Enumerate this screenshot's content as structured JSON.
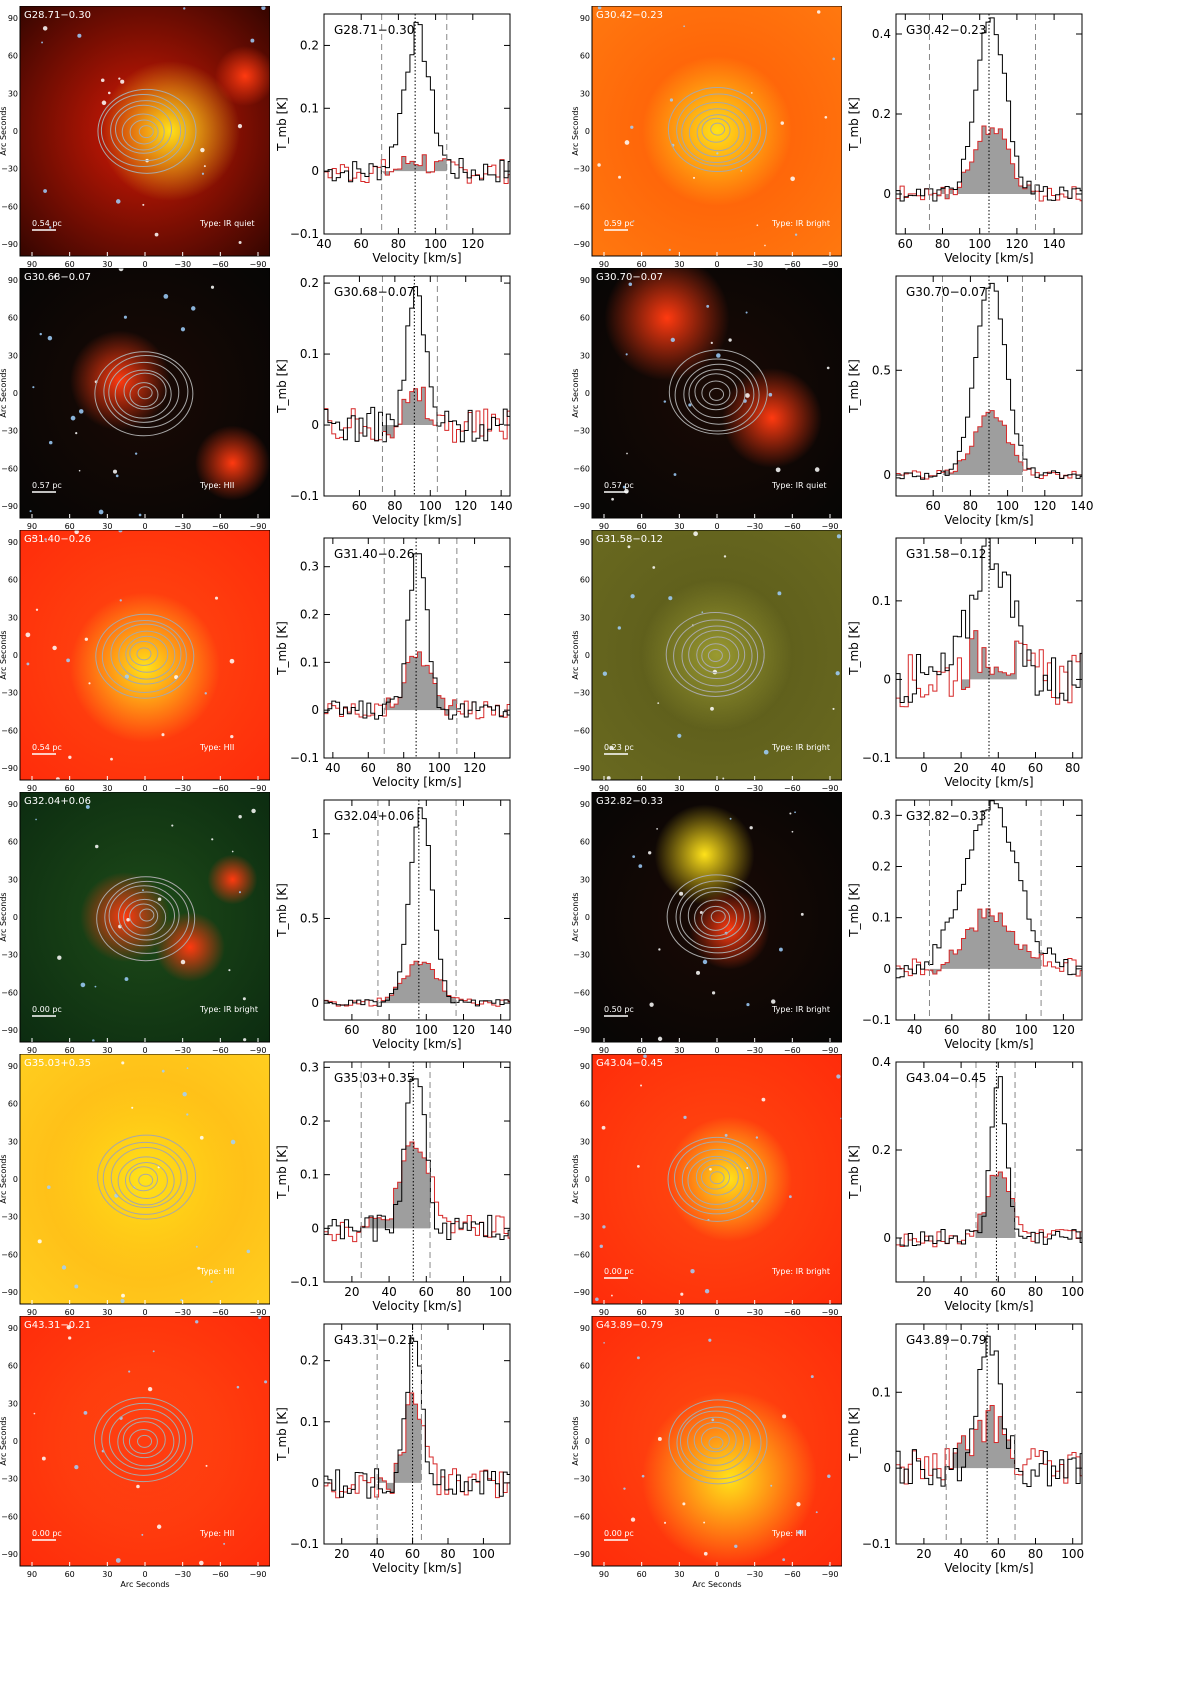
{
  "palette": {
    "spectrum_black": "#000000",
    "spectrum_red": "#d62828",
    "fill_gray": "#9e9e9e",
    "contour_gray": "#a8a8a8",
    "img_red": "#ff3a10",
    "img_yellow": "#ffe21a",
    "img_green": "#2f8a2a",
    "img_dark": "#0a0a0a"
  },
  "image_panel_labels": {
    "y_axis": "Arc Seconds",
    "x_axis": "Arc Seconds",
    "x_ticks": [
      "90",
      "60",
      "30",
      "0",
      "−30",
      "−60",
      "−90"
    ],
    "y_ticks": [
      "90",
      "60",
      "30",
      "0",
      "−30",
      "−60",
      "−90"
    ]
  },
  "chart_data": [
    {
      "source": "G28.71−0.30",
      "image": {
        "type_label": "Type:  IR quiet",
        "scale_label": "0.54  pc",
        "bg": "red-dark",
        "blobs": [
          [
            0.6,
            0.5,
            0.28,
            "yellow"
          ],
          [
            0.9,
            0.28,
            0.12,
            "red"
          ]
        ]
      },
      "spectrum": {
        "type": "line",
        "xlabel": "Velocity [km/s]",
        "ylabel": "T_mb [K]",
        "xlim": [
          40,
          140
        ],
        "ylim": [
          -0.1,
          0.25
        ],
        "xticks": [
          40,
          60,
          80,
          100,
          120
        ],
        "yticks": [
          -0.1,
          0,
          0.1,
          0.2
        ],
        "vsys": 89,
        "vlines": [
          71,
          106
        ],
        "black_peak": 0.22,
        "black_width": 7,
        "red_peak": 0.02,
        "red_width": 6,
        "noise": 0.02
      }
    },
    {
      "source": "G30.42−0.23",
      "image": {
        "type_label": "Type:  IR bright",
        "scale_label": "0.59  pc",
        "bg": "orange",
        "blobs": [
          [
            0.5,
            0.5,
            0.3,
            "yellow"
          ]
        ]
      },
      "spectrum": {
        "type": "line",
        "xlabel": "Velocity [km/s]",
        "ylabel": "T_mb [K]",
        "xlim": [
          55,
          155
        ],
        "ylim": [
          -0.1,
          0.45
        ],
        "xticks": [
          60,
          80,
          100,
          120,
          140
        ],
        "yticks": [
          0,
          0.2,
          0.4
        ],
        "vsys": 105,
        "vlines": [
          73,
          130
        ],
        "black_peak": 0.43,
        "black_width": 8,
        "red_peak": 0.17,
        "red_width": 9,
        "noise": 0.02
      }
    },
    {
      "source": "G30.68−0.07",
      "image": {
        "type_label": "Type:  HII",
        "scale_label": "0.57  pc",
        "bg": "dark",
        "blobs": [
          [
            0.4,
            0.45,
            0.2,
            "red"
          ],
          [
            0.85,
            0.78,
            0.15,
            "red"
          ]
        ]
      },
      "spectrum": {
        "type": "line",
        "xlabel": "Velocity [km/s]",
        "ylabel": "T_mb [K]",
        "xlim": [
          40,
          145
        ],
        "ylim": [
          -0.1,
          0.21
        ],
        "xticks": [
          60,
          80,
          100,
          120,
          140
        ],
        "yticks": [
          -0.1,
          0,
          0.1,
          0.2
        ],
        "vsys": 91,
        "vlines": [
          73,
          104
        ],
        "black_peak": 0.19,
        "black_width": 5,
        "red_peak": 0.04,
        "red_width": 6,
        "noise": 0.025
      }
    },
    {
      "source": "G30.70−0.07",
      "image": {
        "type_label": "Type:  IR quiet",
        "scale_label": "0.57  pc",
        "bg": "dark",
        "blobs": [
          [
            0.72,
            0.6,
            0.2,
            "red"
          ],
          [
            0.3,
            0.2,
            0.25,
            "red"
          ]
        ]
      },
      "spectrum": {
        "type": "line",
        "xlabel": "Velocity [km/s]",
        "ylabel": "T_mb [K]",
        "xlim": [
          40,
          140
        ],
        "ylim": [
          -0.1,
          0.95
        ],
        "xticks": [
          60,
          80,
          100,
          120,
          140
        ],
        "yticks": [
          0,
          0.5
        ],
        "vsys": 90,
        "vlines": [
          65,
          108
        ],
        "black_peak": 0.92,
        "black_width": 8,
        "red_peak": 0.3,
        "red_width": 9,
        "noise": 0.02
      }
    },
    {
      "source": "G31.40−0.26",
      "image": {
        "type_label": "Type:  HII",
        "scale_label": "0.54  pc",
        "bg": "red",
        "blobs": [
          [
            0.5,
            0.55,
            0.3,
            "yellow"
          ]
        ]
      },
      "spectrum": {
        "type": "line",
        "xlabel": "Velocity [km/s]",
        "ylabel": "T_mb [K]",
        "xlim": [
          35,
          140
        ],
        "ylim": [
          -0.1,
          0.36
        ],
        "xticks": [
          40,
          60,
          80,
          100,
          120
        ],
        "yticks": [
          -0.1,
          0,
          0.1,
          0.2,
          0.3
        ],
        "vsys": 87,
        "vlines": [
          69,
          110
        ],
        "black_peak": 0.35,
        "black_width": 5,
        "red_peak": 0.12,
        "red_width": 7,
        "noise": 0.02
      }
    },
    {
      "source": "G31.58−0.12",
      "image": {
        "type_label": "Type:  IR bright",
        "scale_label": "0.23  pc",
        "bg": "olive",
        "blobs": [
          [
            0.5,
            0.5,
            0.3,
            "olive"
          ]
        ]
      },
      "spectrum": {
        "type": "line",
        "xlabel": "Velocity [km/s]",
        "ylabel": "T_mb [K]",
        "xlim": [
          -15,
          85
        ],
        "ylim": [
          -0.1,
          0.18
        ],
        "xticks": [
          0,
          20,
          40,
          60,
          80
        ],
        "yticks": [
          -0.1,
          0,
          0.1
        ],
        "vsys": 35,
        "vlines": [],
        "black_peak": 0.17,
        "black_width": 10,
        "red_peak": 0.04,
        "red_width": 12,
        "noise": 0.035
      }
    },
    {
      "source": "G32.04+0.06",
      "image": {
        "type_label": "Type:  IR bright",
        "scale_label": "0.00  pc",
        "bg": "green",
        "blobs": [
          [
            0.42,
            0.5,
            0.18,
            "red"
          ],
          [
            0.68,
            0.62,
            0.14,
            "red"
          ],
          [
            0.85,
            0.35,
            0.1,
            "red"
          ]
        ]
      },
      "spectrum": {
        "type": "line",
        "xlabel": "Velocity [km/s]",
        "ylabel": "T_mb [K]",
        "xlim": [
          45,
          145
        ],
        "ylim": [
          -0.1,
          1.2
        ],
        "xticks": [
          60,
          80,
          100,
          120,
          140
        ],
        "yticks": [
          0,
          0.5,
          1
        ],
        "vsys": 96,
        "vlines": [
          74,
          116
        ],
        "black_peak": 1.14,
        "black_width": 6,
        "red_peak": 0.24,
        "red_width": 9,
        "noise": 0.02
      }
    },
    {
      "source": "G32.82−0.33",
      "image": {
        "type_label": "Type:  IR bright",
        "scale_label": "0.50  pc",
        "bg": "dark",
        "blobs": [
          [
            0.45,
            0.25,
            0.2,
            "yellow"
          ],
          [
            0.55,
            0.55,
            0.16,
            "red"
          ]
        ]
      },
      "spectrum": {
        "type": "line",
        "xlabel": "Velocity [km/s]",
        "ylabel": "T_mb [K]",
        "xlim": [
          30,
          130
        ],
        "ylim": [
          -0.1,
          0.33
        ],
        "xticks": [
          40,
          60,
          80,
          100,
          120
        ],
        "yticks": [
          -0.1,
          0,
          0.1,
          0.2,
          0.3
        ],
        "vsys": 80,
        "vlines": [
          48,
          108
        ],
        "black_peak": 0.32,
        "black_width": 14,
        "red_peak": 0.11,
        "red_width": 12,
        "noise": 0.02
      }
    },
    {
      "source": "G35.03+0.35",
      "image": {
        "type_label": "Type:  HII",
        "scale_label": "",
        "bg": "yellow",
        "blobs": [
          [
            0.5,
            0.5,
            0.4,
            "yellow"
          ]
        ]
      },
      "spectrum": {
        "type": "line",
        "xlabel": "Velocity [km/s]",
        "ylabel": "T_mb [K]",
        "xlim": [
          5,
          105
        ],
        "ylim": [
          -0.1,
          0.31
        ],
        "xticks": [
          20,
          40,
          60,
          80,
          100
        ],
        "yticks": [
          -0.1,
          0,
          0.1,
          0.2,
          0.3
        ],
        "vsys": 53,
        "vlines": [
          25,
          62
        ],
        "black_peak": 0.3,
        "black_width": 5,
        "red_peak": 0.15,
        "red_width": 8,
        "noise": 0.025
      }
    },
    {
      "source": "G43.04−0.45",
      "image": {
        "type_label": "Type:  IR bright",
        "scale_label": "0.00  pc",
        "bg": "red",
        "blobs": [
          [
            0.55,
            0.5,
            0.25,
            "yellow"
          ]
        ]
      },
      "spectrum": {
        "type": "line",
        "xlabel": "Velocity [km/s]",
        "ylabel": "T_mb [K]",
        "xlim": [
          5,
          105
        ],
        "ylim": [
          -0.1,
          0.4
        ],
        "xticks": [
          20,
          40,
          60,
          80,
          100
        ],
        "yticks": [
          0,
          0.2,
          0.4
        ],
        "vsys": 59,
        "vlines": [
          48,
          69
        ],
        "black_peak": 0.37,
        "black_width": 4,
        "red_peak": 0.16,
        "red_width": 6,
        "noise": 0.02
      }
    },
    {
      "source": "G43.31−0.21",
      "image": {
        "type_label": "Type:  HII",
        "scale_label": "0.00  pc",
        "bg": "red",
        "blobs": [
          [
            0.5,
            0.55,
            0.35,
            "red"
          ]
        ]
      },
      "spectrum": {
        "type": "line",
        "xlabel": "Velocity [km/s]",
        "ylabel": "T_mb [K]",
        "xlim": [
          10,
          115
        ],
        "ylim": [
          -0.1,
          0.26
        ],
        "xticks": [
          20,
          40,
          60,
          80,
          100
        ],
        "yticks": [
          -0.1,
          0,
          0.1,
          0.2
        ],
        "vsys": 60,
        "vlines": [
          40,
          65
        ],
        "black_peak": 0.25,
        "black_width": 4,
        "red_peak": 0.15,
        "red_width": 5,
        "noise": 0.025
      }
    },
    {
      "source": "G43.89−0.79",
      "image": {
        "type_label": "Type:  HII",
        "scale_label": "0.00  pc",
        "bg": "red",
        "blobs": [
          [
            0.55,
            0.65,
            0.35,
            "yellow"
          ]
        ]
      },
      "spectrum": {
        "type": "line",
        "xlabel": "Velocity [km/s]",
        "ylabel": "T_mb [K]",
        "xlim": [
          5,
          105
        ],
        "ylim": [
          -0.1,
          0.19
        ],
        "xticks": [
          20,
          40,
          60,
          80,
          100
        ],
        "yticks": [
          -0.1,
          0,
          0.1
        ],
        "vsys": 54,
        "vlines": [
          32,
          69
        ],
        "black_peak": 0.18,
        "black_width": 6,
        "red_peak": 0.06,
        "red_width": 9,
        "noise": 0.025
      }
    }
  ]
}
